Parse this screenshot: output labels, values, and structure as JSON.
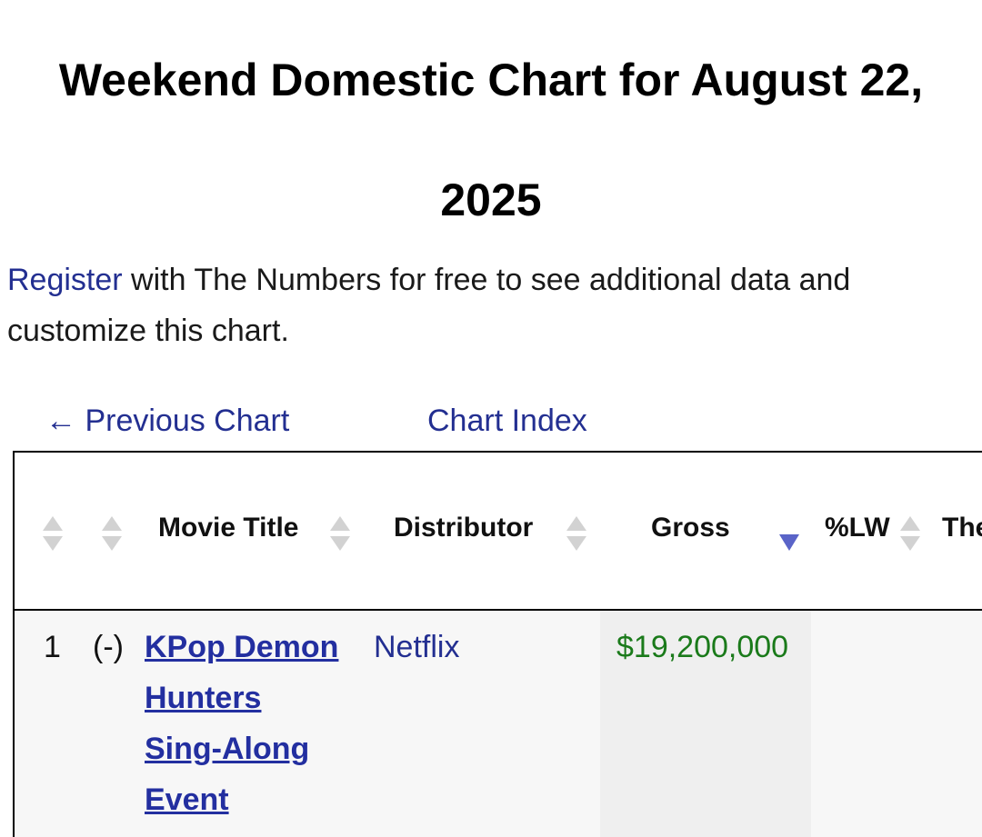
{
  "page": {
    "title_line1": "Weekend Domestic Chart for August 22,",
    "title_line2": "2025"
  },
  "intro": {
    "register_link": "Register",
    "text": " with The Numbers for free to see additional data and customize this chart."
  },
  "nav": {
    "previous": "← Previous Chart",
    "index": "Chart Index"
  },
  "table": {
    "headers": {
      "movie_title": "Movie Title",
      "distributor": "Distributor",
      "gross": "Gross",
      "lw": "%LW",
      "theaters": "The"
    },
    "sort_column": "Gross",
    "sort_direction": "descending",
    "rows": [
      {
        "rank": "1",
        "change": "(-)",
        "title_lines": [
          "KPop Demon",
          "Hunters",
          "Sing-Along",
          "Event"
        ],
        "distributor": "Netflix",
        "gross": "$19,200,000"
      }
    ]
  },
  "colors": {
    "link": "#232f91",
    "gross_text": "#1a7a1a",
    "sort_active": "#5a64c8",
    "sort_inactive": "#d2d2d2"
  }
}
